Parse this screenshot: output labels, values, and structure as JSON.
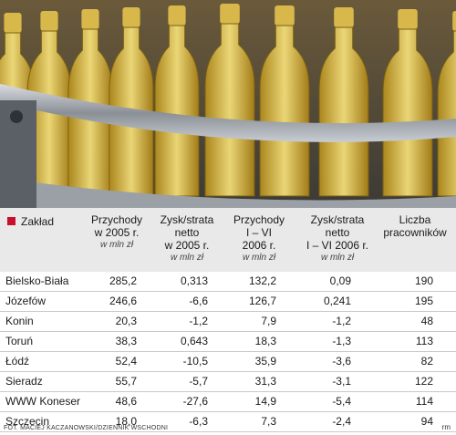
{
  "table": {
    "legend": "Zakład",
    "columns": [
      {
        "lines": [
          "Przychody",
          "w 2005 r."
        ],
        "unit": "w mln zł"
      },
      {
        "lines": [
          "Zysk/strata",
          "netto",
          "w 2005 r."
        ],
        "unit": "w mln zł"
      },
      {
        "lines": [
          "Przychody",
          "I – VI",
          "2006 r."
        ],
        "unit": "w mln zł"
      },
      {
        "lines": [
          "Zysk/strata",
          "netto",
          "I – VI 2006 r."
        ],
        "unit": "w mln zł"
      },
      {
        "lines": [
          "Liczba",
          "pracowników"
        ]
      }
    ],
    "rows": [
      [
        "Bielsko-Biała",
        "285,2",
        "0,313",
        "132,2",
        "0,09",
        "190"
      ],
      [
        "Józefów",
        "246,6",
        "-6,6",
        "126,7",
        "0,241",
        "195"
      ],
      [
        "Konin",
        "20,3",
        "-1,2",
        "7,9",
        "-1,2",
        "48"
      ],
      [
        "Toruń",
        "38,3",
        "0,643",
        "18,3",
        "-1,3",
        "113"
      ],
      [
        "Łódź",
        "52,4",
        "-10,5",
        "35,9",
        "-3,6",
        "82"
      ],
      [
        "Sieradz",
        "55,7",
        "-5,7",
        "31,3",
        "-3,1",
        "122"
      ],
      [
        "WWW Koneser",
        "48,6",
        "-27,6",
        "14,9",
        "-5,4",
        "114"
      ],
      [
        "Szczecin",
        "18,0",
        "-6,3",
        "7,3",
        "-2,4",
        "94"
      ]
    ]
  },
  "footer": {
    "credit": "FOT. MACIEJ KACZANOWSKI/DZIENNIK WSCHODNI",
    "sign": "rm"
  }
}
